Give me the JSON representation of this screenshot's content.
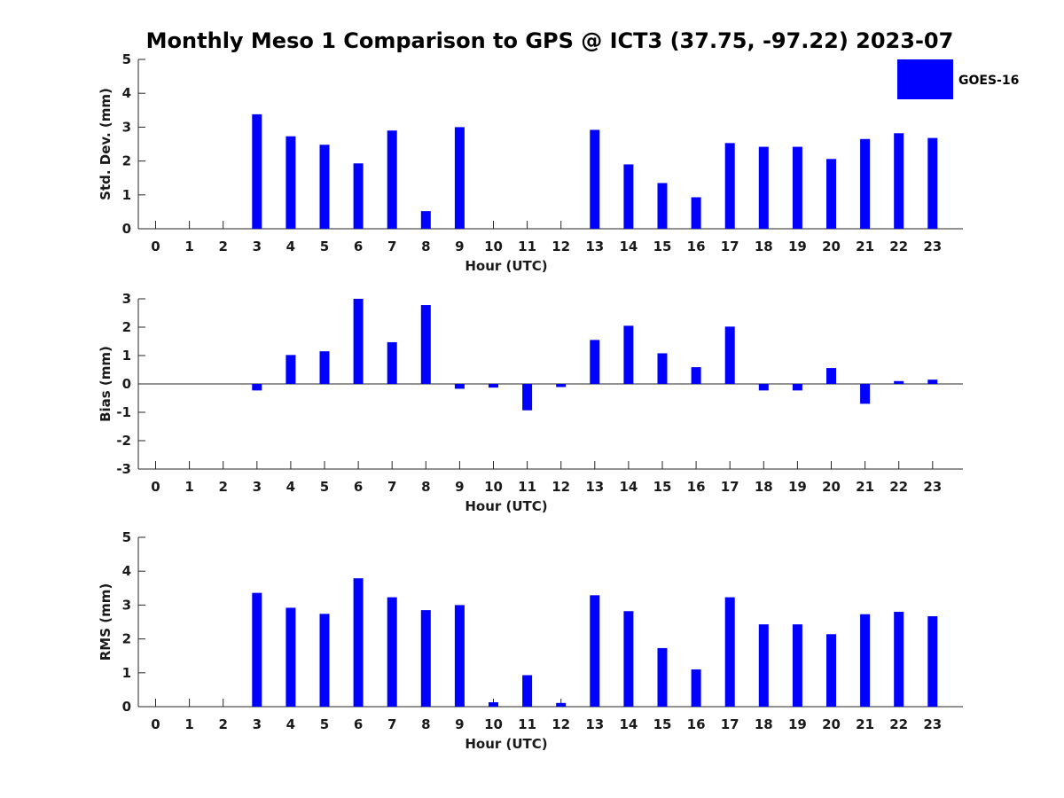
{
  "colors": {
    "bar": "#0000ff",
    "axis": "#262626",
    "background": "#ffffff"
  },
  "chart_data": {
    "title": "Monthly Meso 1 Comparison to GPS @ ICT3 (37.75, -97.22) 2023-07",
    "legend": {
      "entries": [
        "GOES-16"
      ],
      "placement": "top-right"
    },
    "panels": [
      {
        "type": "bar",
        "xlabel": "Hour (UTC)",
        "ylabel": "Std. Dev. (mm)",
        "ylim": [
          0,
          5
        ],
        "yticks": [
          "0",
          "1",
          "2",
          "3",
          "4",
          "5"
        ],
        "categories": [
          "0",
          "1",
          "2",
          "3",
          "4",
          "5",
          "6",
          "7",
          "8",
          "9",
          "10",
          "11",
          "12",
          "13",
          "14",
          "15",
          "16",
          "17",
          "18",
          "19",
          "20",
          "21",
          "22",
          "23"
        ],
        "series": [
          {
            "name": "GOES-16",
            "values": [
              0,
              0,
              0,
              3.38,
              2.73,
              2.48,
              1.93,
              2.9,
              0.52,
              3.0,
              0,
              0,
              0,
              2.92,
              1.9,
              1.35,
              0.93,
              2.53,
              2.42,
              2.42,
              2.06,
              2.65,
              2.82,
              2.68
            ]
          }
        ]
      },
      {
        "type": "bar",
        "xlabel": "Hour (UTC)",
        "ylabel": "Bias (mm)",
        "ylim": [
          -3,
          3
        ],
        "yticks": [
          "-3",
          "-2",
          "-1",
          "0",
          "1",
          "2",
          "3"
        ],
        "categories": [
          "0",
          "1",
          "2",
          "3",
          "4",
          "5",
          "6",
          "7",
          "8",
          "9",
          "10",
          "11",
          "12",
          "13",
          "14",
          "15",
          "16",
          "17",
          "18",
          "19",
          "20",
          "21",
          "22",
          "23"
        ],
        "series": [
          {
            "name": "GOES-16",
            "values": [
              0,
              0,
              0,
              -0.23,
              1.02,
              1.15,
              3.0,
              1.47,
              2.78,
              -0.17,
              -0.13,
              -0.93,
              -0.11,
              1.55,
              2.05,
              1.08,
              0.59,
              2.02,
              -0.23,
              -0.23,
              0.56,
              -0.7,
              0.1,
              0.15
            ]
          }
        ]
      },
      {
        "type": "bar",
        "xlabel": "Hour (UTC)",
        "ylabel": "RMS (mm)",
        "ylim": [
          0,
          5
        ],
        "yticks": [
          "0",
          "1",
          "2",
          "3",
          "4",
          "5"
        ],
        "categories": [
          "0",
          "1",
          "2",
          "3",
          "4",
          "5",
          "6",
          "7",
          "8",
          "9",
          "10",
          "11",
          "12",
          "13",
          "14",
          "15",
          "16",
          "17",
          "18",
          "19",
          "20",
          "21",
          "22",
          "23"
        ],
        "series": [
          {
            "name": "GOES-16",
            "values": [
              0,
              0,
              0,
              3.36,
              2.92,
              2.74,
              3.79,
              3.23,
              2.85,
              3.0,
              0.13,
              0.93,
              0.11,
              3.29,
              2.82,
              1.73,
              1.1,
              3.23,
              2.43,
              2.43,
              2.14,
              2.73,
              2.8,
              2.67
            ]
          }
        ]
      }
    ]
  }
}
